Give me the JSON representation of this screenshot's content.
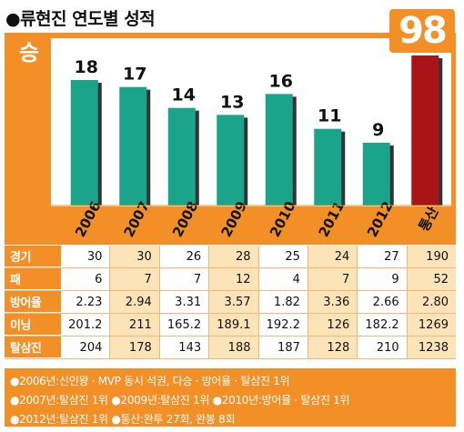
{
  "header": {
    "title": "●류현진 연도별 성적",
    "win_label": "승",
    "total_wins": "98"
  },
  "chart_data": {
    "type": "bar",
    "categories": [
      "2006",
      "2007",
      "2008",
      "2009",
      "2010",
      "2011",
      "2012",
      "통산"
    ],
    "values": [
      18,
      17,
      14,
      13,
      16,
      11,
      9,
      98
    ],
    "colors": {
      "season": "#1aa58a",
      "total": "#a81417"
    },
    "ylabel": "승"
  },
  "stats_table": {
    "rows": [
      {
        "label": "경기",
        "values": [
          "30",
          "30",
          "26",
          "28",
          "25",
          "24",
          "27",
          "190"
        ]
      },
      {
        "label": "패",
        "values": [
          "6",
          "7",
          "7",
          "12",
          "4",
          "7",
          "9",
          "52"
        ]
      },
      {
        "label": "방어율",
        "values": [
          "2.23",
          "2.94",
          "3.31",
          "3.57",
          "1.82",
          "3.36",
          "2.66",
          "2.80"
        ]
      },
      {
        "label": "이닝",
        "values": [
          "201.2",
          "211",
          "165.2",
          "189.1",
          "192.2",
          "126",
          "182.2",
          "1269"
        ]
      },
      {
        "label": "탈삼진",
        "values": [
          "204",
          "178",
          "143",
          "188",
          "187",
          "128",
          "210",
          "1238"
        ]
      }
    ]
  },
  "notes": [
    "●2006년:신인왕 · MVP 동시 석권, 다승 · 방어율 · 탈삼진 1위",
    "●2007년:탈삼진 1위  ●2009년:탈삼진 1위  ●2010년:방어율 · 탈삼진 1위",
    "●2012년:탈삼진 1위  ●통산:완투 27회, 완봉 8회"
  ]
}
